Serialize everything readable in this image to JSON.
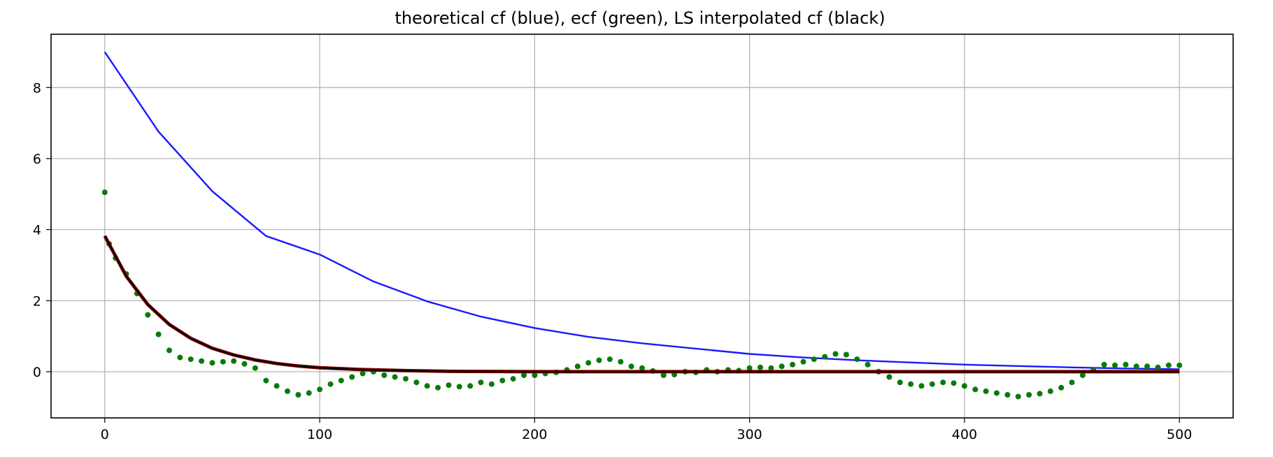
{
  "chart_data": {
    "type": "line",
    "title": "theoretical cf (blue), ecf (green), LS interpolated cf  (black)",
    "xlabel": "",
    "ylabel": "",
    "xlim": [
      -25,
      525
    ],
    "ylim": [
      -1.3,
      9.5
    ],
    "x_ticks": [
      0,
      100,
      200,
      300,
      400,
      500
    ],
    "y_ticks": [
      0,
      2,
      4,
      6,
      8
    ],
    "grid": true,
    "legend": "none",
    "colors": {
      "theoretical": "#1a1aff",
      "ecf": "#0a7a0a",
      "ls_interpolated": "#000000",
      "ls_underlay": "#8b0000",
      "grid": "#b0b0b0"
    },
    "series": [
      {
        "key": "theoretical",
        "kind": "line",
        "x": [
          0,
          25,
          50,
          75,
          100,
          125,
          150,
          175,
          200,
          225,
          250,
          275,
          300,
          325,
          350,
          375,
          400,
          425,
          450,
          475,
          500
        ],
        "values": [
          9.0,
          6.76,
          5.08,
          3.82,
          3.3,
          2.54,
          1.98,
          1.55,
          1.23,
          0.98,
          0.8,
          0.65,
          0.5,
          0.4,
          0.32,
          0.26,
          0.2,
          0.16,
          0.12,
          0.09,
          0.07
        ]
      },
      {
        "key": "ls_interpolated",
        "kind": "line",
        "x": [
          0,
          10,
          20,
          30,
          40,
          50,
          60,
          70,
          80,
          90,
          100,
          120,
          140,
          160,
          200,
          250,
          300,
          350,
          400,
          450,
          500
        ],
        "values": [
          3.82,
          2.69,
          1.89,
          1.33,
          0.94,
          0.66,
          0.47,
          0.33,
          0.23,
          0.16,
          0.11,
          0.06,
          0.03,
          0.01,
          0.0,
          0.0,
          0.0,
          0.0,
          0.0,
          0.0,
          0.0
        ]
      },
      {
        "key": "ecf",
        "kind": "scatter",
        "x": [
          0,
          2,
          5,
          10,
          15,
          20,
          25,
          30,
          35,
          40,
          45,
          50,
          55,
          60,
          65,
          70,
          75,
          80,
          85,
          90,
          95,
          100,
          105,
          110,
          115,
          120,
          125,
          130,
          135,
          140,
          145,
          150,
          155,
          160,
          165,
          170,
          175,
          180,
          185,
          190,
          195,
          200,
          205,
          210,
          215,
          220,
          225,
          230,
          235,
          240,
          245,
          250,
          255,
          260,
          265,
          270,
          275,
          280,
          285,
          290,
          295,
          300,
          305,
          310,
          315,
          320,
          325,
          330,
          335,
          340,
          345,
          350,
          355,
          360,
          365,
          370,
          375,
          380,
          385,
          390,
          395,
          400,
          405,
          410,
          415,
          420,
          425,
          430,
          435,
          440,
          445,
          450,
          455,
          460,
          465,
          470,
          475,
          480,
          485,
          490,
          495,
          500
        ],
        "values": [
          5.05,
          3.6,
          3.2,
          2.75,
          2.2,
          1.6,
          1.05,
          0.6,
          0.4,
          0.35,
          0.3,
          0.25,
          0.28,
          0.3,
          0.22,
          0.1,
          -0.25,
          -0.4,
          -0.55,
          -0.65,
          -0.6,
          -0.5,
          -0.35,
          -0.25,
          -0.15,
          -0.05,
          0.0,
          -0.1,
          -0.15,
          -0.2,
          -0.3,
          -0.4,
          -0.45,
          -0.38,
          -0.42,
          -0.4,
          -0.3,
          -0.35,
          -0.25,
          -0.2,
          -0.1,
          -0.1,
          -0.05,
          -0.02,
          0.05,
          0.15,
          0.25,
          0.32,
          0.35,
          0.28,
          0.15,
          0.1,
          0.02,
          -0.1,
          -0.08,
          0.0,
          -0.02,
          0.05,
          0.0,
          0.05,
          0.03,
          0.1,
          0.12,
          0.1,
          0.15,
          0.2,
          0.28,
          0.35,
          0.42,
          0.5,
          0.48,
          0.35,
          0.2,
          0.0,
          -0.15,
          -0.3,
          -0.35,
          -0.4,
          -0.35,
          -0.3,
          -0.32,
          -0.4,
          -0.5,
          -0.55,
          -0.6,
          -0.65,
          -0.7,
          -0.65,
          -0.62,
          -0.55,
          -0.45,
          -0.3,
          -0.1,
          0.05,
          0.2,
          0.18,
          0.2,
          0.15,
          0.15,
          0.12,
          0.18,
          0.18
        ]
      }
    ]
  }
}
